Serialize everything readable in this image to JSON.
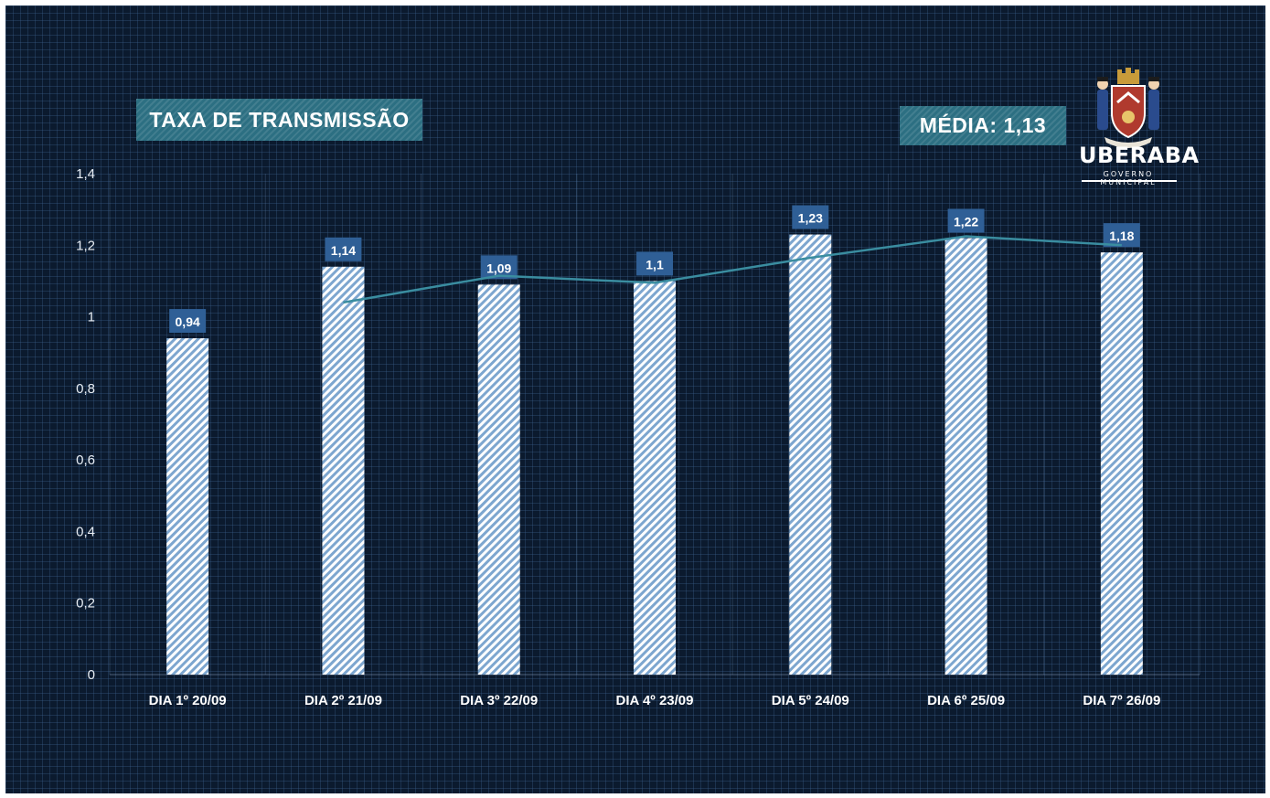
{
  "header": {
    "title": "TAXA DE TRANSMISSÃO",
    "average_label": "MÉDIA: 1,13"
  },
  "logo": {
    "name": "UBERABA",
    "subtitle": "GOVERNO MUNICIPAL"
  },
  "colors": {
    "background": "#0b1a2e",
    "banner": "#2c6f82",
    "bar_stripe": "#7da6cf",
    "label_box": "#2f5f96",
    "trend_line": "#3a8da0"
  },
  "chart_data": {
    "type": "bar",
    "title": "TAXA DE TRANSMISSÃO",
    "categories": [
      "DIA 1º 20/09",
      "DIA 2º 21/09",
      "DIA 3º 22/09",
      "DIA 4º 23/09",
      "DIA 5º 24/09",
      "DIA 6º 25/09",
      "DIA 7º 26/09"
    ],
    "values": [
      0.94,
      1.14,
      1.09,
      1.1,
      1.23,
      1.22,
      1.18
    ],
    "value_labels": [
      "0,94",
      "1,14",
      "1,09",
      "1,1",
      "1,23",
      "1,22",
      "1,18"
    ],
    "trendline": {
      "type": "moving-average",
      "values": [
        null,
        1.04,
        1.115,
        1.095,
        1.165,
        1.225,
        1.2
      ]
    },
    "yticks": [
      0,
      0.2,
      0.4,
      0.6,
      0.8,
      1,
      1.2,
      1.4
    ],
    "ytick_labels": [
      "0",
      "0,2",
      "0,4",
      "0,6",
      "0,8",
      "1",
      "1,2",
      "1,4"
    ],
    "ylim": [
      0,
      1.4
    ],
    "xlabel": "",
    "ylabel": "",
    "grid": false,
    "legend": "none"
  }
}
